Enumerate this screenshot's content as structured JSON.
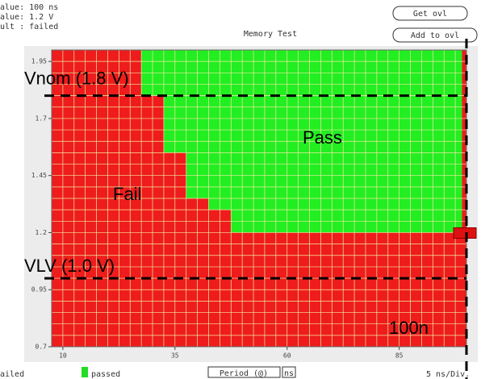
{
  "header": {
    "info": [
      "alue: 100 ns",
      "alue: 1.2 V",
      "ult : failed"
    ],
    "title": "Memory Test",
    "buttons": [
      "Get ovl",
      "Add to ovl"
    ]
  },
  "shmoo": {
    "xlim": [
      7.5,
      100
    ],
    "ylim": [
      0.7,
      2.0
    ],
    "xticks": [
      10,
      35,
      60,
      85
    ],
    "yticks": [
      1.95,
      1.7,
      1.45,
      1.2,
      0.95,
      0.7
    ],
    "pass_region": [
      {
        "x_from": 27.5,
        "x_to": 32.5,
        "v_min": 1.8
      },
      {
        "x_from": 32.5,
        "x_to": 37.5,
        "v_min": 1.55
      },
      {
        "x_from": 37.5,
        "x_to": 42.5,
        "v_min": 1.35
      },
      {
        "x_from": 42.5,
        "x_to": 47.5,
        "v_min": 1.3
      },
      {
        "x_from": 47.5,
        "x_to": 99,
        "v_min": 1.2
      }
    ],
    "vnom": 1.8,
    "vlv": 1.0,
    "period_marker": 100,
    "labels": {
      "vnom": "Vnom (1.8 V)",
      "pass": "Pass",
      "fail": "Fail",
      "vlv": "VLV (1.0 V)",
      "period": "100n"
    }
  },
  "footer": {
    "failed": "ailed",
    "passed": "passed",
    "axis": "Period (@)",
    "unit": "ns",
    "scale": "5 ns/Div."
  }
}
